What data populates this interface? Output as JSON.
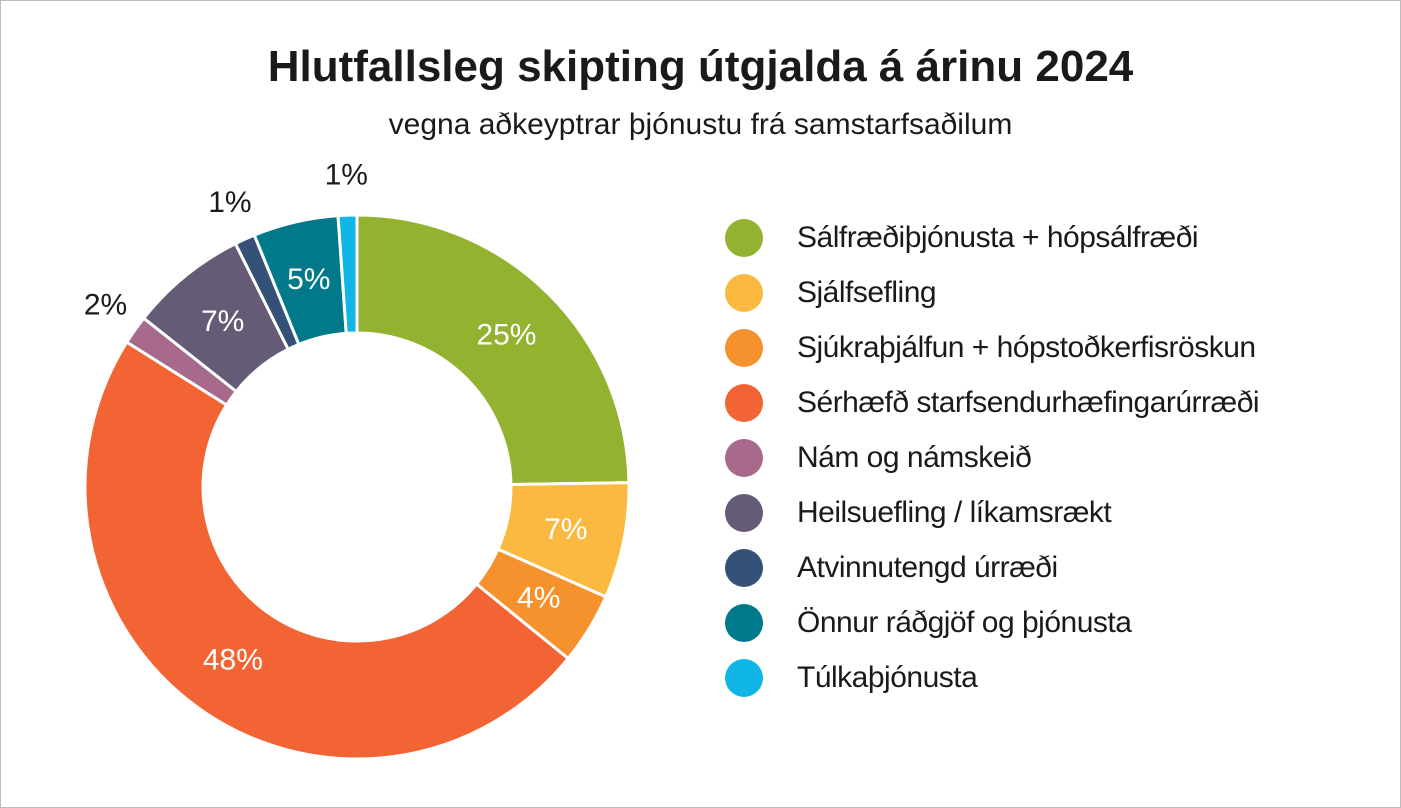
{
  "chart_data": {
    "type": "pie",
    "title": "Hlutfallsleg skipting útgjalda á árinu 2024",
    "subtitle": "vegna aðkeyptrar þjónustu frá samstarfsaðilum",
    "donut": true,
    "legend_position": "right",
    "slices": [
      {
        "name": "Sálfræðiþjónusta + hópsálfræði",
        "value": 24.5,
        "label": "25%",
        "color": "#93b230"
      },
      {
        "name": "Sjálfsefling",
        "value": 6.8,
        "label": "7%",
        "color": "#fbb941"
      },
      {
        "name": "Sjúkraþjálfun + hópstoðkerfisröskun",
        "value": 4.2,
        "label": "4%",
        "color": "#f6922e"
      },
      {
        "name": "Sérhæfð starfsendurhæfingarúrræði",
        "value": 47.6,
        "label": "48%",
        "color": "#f26434"
      },
      {
        "name": "Nám og námskeið",
        "value": 1.7,
        "label": "2%",
        "color": "#a86a8c"
      },
      {
        "name": "Heilsuefling / líkamsrækt",
        "value": 6.9,
        "label": "7%",
        "color": "#655b77"
      },
      {
        "name": "Atvinnutengd úrræði",
        "value": 1.2,
        "label": "1%",
        "color": "#355177"
      },
      {
        "name": "Önnur ráðgjöf og þjónusta",
        "value": 5.0,
        "label": "5%",
        "color": "#00798b"
      },
      {
        "name": "Túlkaþjónusta",
        "value": 1.1,
        "label": "1%",
        "color": "#10b6e5"
      }
    ]
  }
}
